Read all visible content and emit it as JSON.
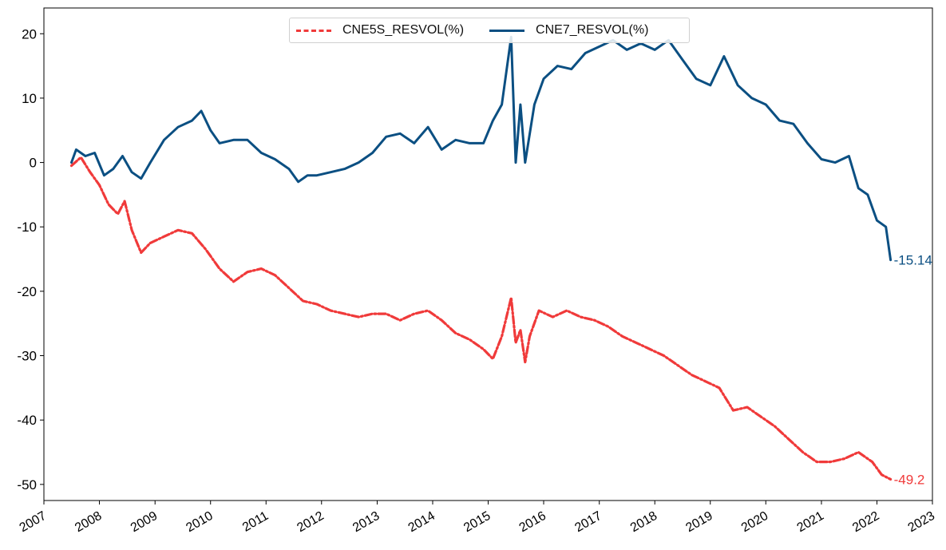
{
  "chart_data": {
    "type": "line",
    "title": "",
    "xlabel": "",
    "ylabel": "",
    "xlim": [
      "2007-01-01",
      "2023-01-01"
    ],
    "ylim": [
      -52.5,
      24
    ],
    "x_tick_labels": [
      "2007",
      "2008",
      "2009",
      "2010",
      "2011",
      "2012",
      "2013",
      "2014",
      "2015",
      "2016",
      "2017",
      "2018",
      "2019",
      "2020",
      "2021",
      "2022",
      "2023"
    ],
    "y_ticks": [
      20,
      10,
      0,
      -10,
      -20,
      -30,
      -40,
      -50
    ],
    "y_tick_labels": [
      "20",
      "10",
      "0",
      "-10",
      "-20",
      "-30",
      "-40",
      "-50"
    ],
    "grid": false,
    "legend_position": "top-center",
    "series": [
      {
        "name": "CNE5S_RESVOL(%)",
        "color": "#f03a3a",
        "style": "dash-dot",
        "end_label": "-49.2",
        "points": [
          [
            "2007-07-01",
            -0.5
          ],
          [
            "2007-09-01",
            0.8
          ],
          [
            "2007-11-01",
            -1.5
          ],
          [
            "2008-01-01",
            -3.5
          ],
          [
            "2008-03-01",
            -6.5
          ],
          [
            "2008-05-01",
            -8.0
          ],
          [
            "2008-06-15",
            -6.0
          ],
          [
            "2008-08-01",
            -10.5
          ],
          [
            "2008-10-01",
            -14.0
          ],
          [
            "2008-12-01",
            -12.5
          ],
          [
            "2009-03-01",
            -11.5
          ],
          [
            "2009-06-01",
            -10.5
          ],
          [
            "2009-09-01",
            -11.0
          ],
          [
            "2009-12-01",
            -13.5
          ],
          [
            "2010-03-01",
            -16.5
          ],
          [
            "2010-06-01",
            -18.5
          ],
          [
            "2010-09-01",
            -17.0
          ],
          [
            "2010-12-01",
            -16.5
          ],
          [
            "2011-03-01",
            -17.5
          ],
          [
            "2011-06-01",
            -19.5
          ],
          [
            "2011-09-01",
            -21.5
          ],
          [
            "2011-12-01",
            -22.0
          ],
          [
            "2012-03-01",
            -23.0
          ],
          [
            "2012-06-01",
            -23.5
          ],
          [
            "2012-09-01",
            -24.0
          ],
          [
            "2012-12-01",
            -23.5
          ],
          [
            "2013-03-01",
            -23.5
          ],
          [
            "2013-06-01",
            -24.5
          ],
          [
            "2013-09-01",
            -23.5
          ],
          [
            "2013-12-01",
            -23.0
          ],
          [
            "2014-03-01",
            -24.5
          ],
          [
            "2014-06-01",
            -26.5
          ],
          [
            "2014-09-01",
            -27.5
          ],
          [
            "2014-12-01",
            -29.0
          ],
          [
            "2015-02-01",
            -30.5
          ],
          [
            "2015-04-01",
            -27.0
          ],
          [
            "2015-06-01",
            -21.0
          ],
          [
            "2015-07-01",
            -28.0
          ],
          [
            "2015-08-01",
            -26.0
          ],
          [
            "2015-09-01",
            -31.0
          ],
          [
            "2015-10-01",
            -27.0
          ],
          [
            "2015-12-01",
            -23.0
          ],
          [
            "2016-03-01",
            -24.0
          ],
          [
            "2016-06-01",
            -23.0
          ],
          [
            "2016-09-01",
            -24.0
          ],
          [
            "2016-12-01",
            -24.5
          ],
          [
            "2017-03-01",
            -25.5
          ],
          [
            "2017-06-01",
            -27.0
          ],
          [
            "2017-09-01",
            -28.0
          ],
          [
            "2017-12-01",
            -29.0
          ],
          [
            "2018-03-01",
            -30.0
          ],
          [
            "2018-06-01",
            -31.5
          ],
          [
            "2018-09-01",
            -33.0
          ],
          [
            "2018-12-01",
            -34.0
          ],
          [
            "2019-03-01",
            -35.0
          ],
          [
            "2019-06-01",
            -38.5
          ],
          [
            "2019-09-01",
            -38.0
          ],
          [
            "2019-12-01",
            -39.5
          ],
          [
            "2020-03-01",
            -41.0
          ],
          [
            "2020-06-01",
            -43.0
          ],
          [
            "2020-09-01",
            -45.0
          ],
          [
            "2020-12-01",
            -46.5
          ],
          [
            "2021-03-01",
            -46.5
          ],
          [
            "2021-06-01",
            -46.0
          ],
          [
            "2021-09-01",
            -45.0
          ],
          [
            "2021-12-01",
            -46.5
          ],
          [
            "2022-02-01",
            -48.5
          ],
          [
            "2022-04-01",
            -49.2
          ]
        ]
      },
      {
        "name": "CNE7_RESVOL(%)",
        "color": "#0b4f82",
        "style": "solid",
        "end_label": "-15.14",
        "points": [
          [
            "2007-07-01",
            0.0
          ],
          [
            "2007-08-01",
            2.0
          ],
          [
            "2007-10-01",
            1.0
          ],
          [
            "2007-12-01",
            1.5
          ],
          [
            "2008-02-01",
            -2.0
          ],
          [
            "2008-04-01",
            -1.0
          ],
          [
            "2008-06-01",
            1.0
          ],
          [
            "2008-08-01",
            -1.5
          ],
          [
            "2008-10-01",
            -2.5
          ],
          [
            "2008-12-01",
            0.0
          ],
          [
            "2009-03-01",
            3.5
          ],
          [
            "2009-06-01",
            5.5
          ],
          [
            "2009-09-01",
            6.5
          ],
          [
            "2009-11-01",
            8.0
          ],
          [
            "2010-01-01",
            5.0
          ],
          [
            "2010-03-01",
            3.0
          ],
          [
            "2010-06-01",
            3.5
          ],
          [
            "2010-09-01",
            3.5
          ],
          [
            "2010-12-01",
            1.5
          ],
          [
            "2011-03-01",
            0.5
          ],
          [
            "2011-06-01",
            -1.0
          ],
          [
            "2011-08-01",
            -3.0
          ],
          [
            "2011-10-01",
            -2.0
          ],
          [
            "2011-12-01",
            -2.0
          ],
          [
            "2012-03-01",
            -1.5
          ],
          [
            "2012-06-01",
            -1.0
          ],
          [
            "2012-09-01",
            0.0
          ],
          [
            "2012-12-01",
            1.5
          ],
          [
            "2013-03-01",
            4.0
          ],
          [
            "2013-06-01",
            4.5
          ],
          [
            "2013-09-01",
            3.0
          ],
          [
            "2013-12-01",
            5.5
          ],
          [
            "2014-03-01",
            2.0
          ],
          [
            "2014-06-01",
            3.5
          ],
          [
            "2014-09-01",
            3.0
          ],
          [
            "2014-12-01",
            3.0
          ],
          [
            "2015-02-01",
            6.5
          ],
          [
            "2015-04-01",
            9.0
          ],
          [
            "2015-06-01",
            19.5
          ],
          [
            "2015-07-01",
            0.0
          ],
          [
            "2015-08-01",
            9.0
          ],
          [
            "2015-09-01",
            0.0
          ],
          [
            "2015-11-01",
            9.0
          ],
          [
            "2016-01-01",
            13.0
          ],
          [
            "2016-04-01",
            15.0
          ],
          [
            "2016-07-01",
            14.5
          ],
          [
            "2016-10-01",
            17.0
          ],
          [
            "2017-01-01",
            18.0
          ],
          [
            "2017-04-01",
            19.0
          ],
          [
            "2017-07-01",
            17.5
          ],
          [
            "2017-10-01",
            18.5
          ],
          [
            "2018-01-01",
            17.5
          ],
          [
            "2018-04-01",
            19.0
          ],
          [
            "2018-07-01",
            16.0
          ],
          [
            "2018-10-01",
            13.0
          ],
          [
            "2019-01-01",
            12.0
          ],
          [
            "2019-04-01",
            16.5
          ],
          [
            "2019-07-01",
            12.0
          ],
          [
            "2019-10-01",
            10.0
          ],
          [
            "2020-01-01",
            9.0
          ],
          [
            "2020-04-01",
            6.5
          ],
          [
            "2020-07-01",
            6.0
          ],
          [
            "2020-10-01",
            3.0
          ],
          [
            "2021-01-01",
            0.5
          ],
          [
            "2021-04-01",
            0.0
          ],
          [
            "2021-07-01",
            1.0
          ],
          [
            "2021-09-01",
            -4.0
          ],
          [
            "2021-11-01",
            -5.0
          ],
          [
            "2022-01-01",
            -9.0
          ],
          [
            "2022-03-01",
            -10.0
          ],
          [
            "2022-04-01",
            -15.14
          ]
        ]
      }
    ]
  }
}
